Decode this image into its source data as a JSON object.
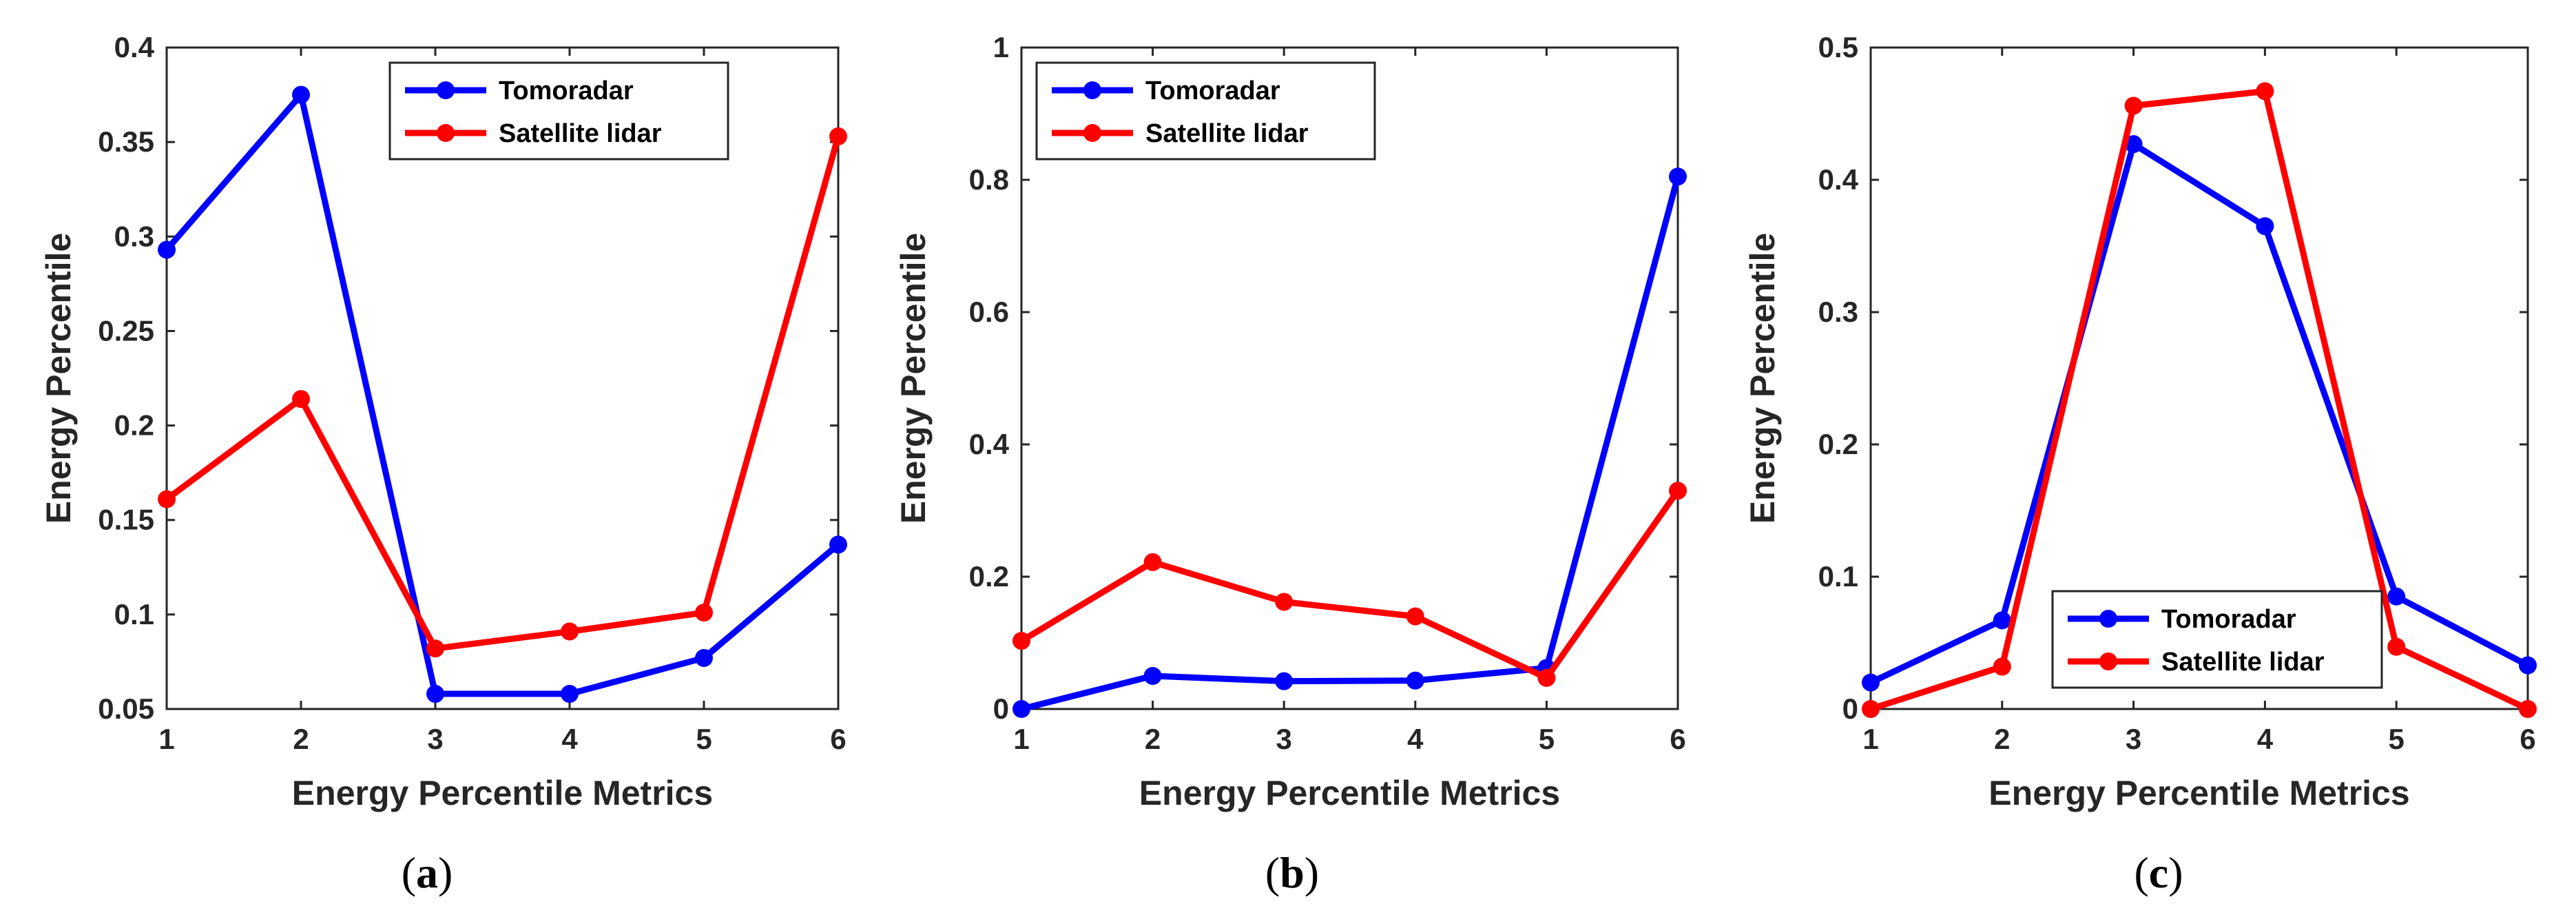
{
  "colors": {
    "tomoradar": "#0000ff",
    "satellite": "#ff0000",
    "axis": "#262626",
    "background": "#ffffff"
  },
  "chart_data": [
    {
      "type": "line",
      "caption": "a",
      "xlabel": "Energy Percentile Metrics",
      "ylabel": "Energy Percentile",
      "categories": [
        1,
        2,
        3,
        4,
        5,
        6
      ],
      "xlim": [
        1,
        6
      ],
      "ylim": [
        0.05,
        0.4
      ],
      "yticks": [
        0.05,
        0.1,
        0.15,
        0.2,
        0.25,
        0.3,
        0.35,
        0.4
      ],
      "ytick_labels": [
        "0.05",
        "0.1",
        "0.15",
        "0.2",
        "0.25",
        "0.3",
        "0.35",
        "0.4"
      ],
      "legend_position": "top-center",
      "series": [
        {
          "name": "Tomoradar",
          "color": "#0000ff",
          "values": [
            0.293,
            0.375,
            0.058,
            0.058,
            0.077,
            0.137
          ]
        },
        {
          "name": "Satellite lidar",
          "color": "#ff0000",
          "values": [
            0.161,
            0.214,
            0.082,
            0.091,
            0.101,
            0.353
          ]
        }
      ]
    },
    {
      "type": "line",
      "caption": "b",
      "xlabel": "Energy Percentile Metrics",
      "ylabel": "Energy Percentile",
      "categories": [
        1,
        2,
        3,
        4,
        5,
        6
      ],
      "xlim": [
        1,
        6
      ],
      "ylim": [
        0,
        1
      ],
      "yticks": [
        0,
        0.2,
        0.4,
        0.6,
        0.8,
        1
      ],
      "ytick_labels": [
        "0",
        "0.2",
        "0.4",
        "0.6",
        "0.8",
        "1"
      ],
      "legend_position": "top-left",
      "series": [
        {
          "name": "Tomoradar",
          "color": "#0000ff",
          "values": [
            0.0,
            0.05,
            0.042,
            0.043,
            0.062,
            0.805
          ]
        },
        {
          "name": "Satellite lidar",
          "color": "#ff0000",
          "values": [
            0.103,
            0.222,
            0.162,
            0.14,
            0.047,
            0.33
          ]
        }
      ]
    },
    {
      "type": "line",
      "caption": "c",
      "xlabel": "Energy Percentile Metrics",
      "ylabel": "Energy Percentile",
      "categories": [
        1,
        2,
        3,
        4,
        5,
        6
      ],
      "xlim": [
        1,
        6
      ],
      "ylim": [
        0,
        0.5
      ],
      "yticks": [
        0,
        0.1,
        0.2,
        0.3,
        0.4,
        0.5
      ],
      "ytick_labels": [
        "0",
        "0.1",
        "0.2",
        "0.3",
        "0.4",
        "0.5"
      ],
      "legend_position": "bottom-left",
      "series": [
        {
          "name": "Tomoradar",
          "color": "#0000ff",
          "values": [
            0.02,
            0.067,
            0.427,
            0.365,
            0.085,
            0.033
          ]
        },
        {
          "name": "Satellite lidar",
          "color": "#ff0000",
          "values": [
            0.0,
            0.032,
            0.456,
            0.467,
            0.047,
            0.0
          ]
        }
      ]
    }
  ]
}
